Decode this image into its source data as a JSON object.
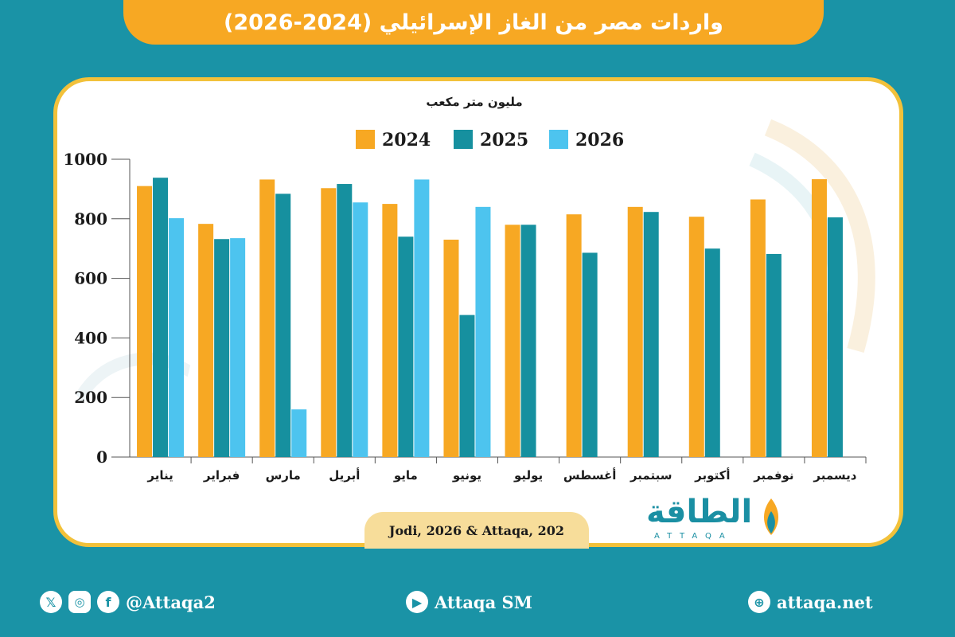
{
  "header": {
    "title": "واردات مصر من الغاز الإسرائيلي (2024-2026)"
  },
  "chart_data": {
    "type": "bar",
    "ylabel": "مليون متر مكعب",
    "ylim": [
      0,
      1000
    ],
    "yticks": [
      0,
      200,
      400,
      600,
      800,
      1000
    ],
    "categories": [
      "يناير",
      "فبراير",
      "مارس",
      "أبريل",
      "مايو",
      "يونيو",
      "يوليو",
      "أغسطس",
      "سبتمبر",
      "أكتوبر",
      "نوفمبر",
      "ديسمبر"
    ],
    "series": [
      {
        "name": "2024",
        "color": "#f7a823",
        "values": [
          910,
          783,
          932,
          903,
          850,
          730,
          780,
          815,
          840,
          807,
          865,
          933
        ]
      },
      {
        "name": "2025",
        "color": "#16909f",
        "values": [
          938,
          732,
          884,
          917,
          740,
          477,
          780,
          686,
          823,
          700,
          682,
          805
        ]
      },
      {
        "name": "2026",
        "color": "#4dc4ef",
        "values": [
          802,
          735,
          160,
          855,
          932,
          840,
          null,
          null,
          null,
          null,
          null,
          null
        ]
      }
    ],
    "legend_position": "top"
  },
  "source": "Jodi, 2026 & Attaqa, 202",
  "logo": {
    "arabic": "الطاقة",
    "latin": "ATTAQA"
  },
  "footer": {
    "social_handle": "@Attaqa2",
    "youtube": "Attaqa SM",
    "website": "attaqa.net",
    "icons": [
      "x-icon",
      "instagram-icon",
      "facebook-icon",
      "youtube-icon",
      "globe-icon"
    ]
  }
}
